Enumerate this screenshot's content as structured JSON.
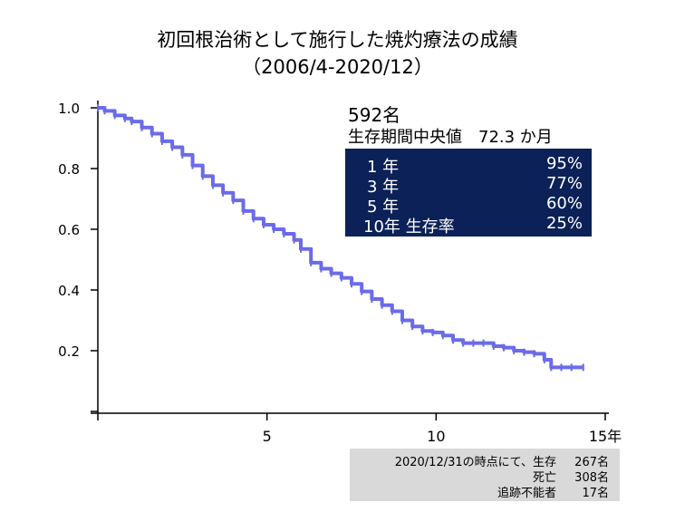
{
  "title_line1": "初回根治術として施行した焼灼療法の成績",
  "title_line2": "（2006/4-2020/12）",
  "patients": "592名",
  "median": {
    "label": "生存期間中央値",
    "value": "72.3 か月"
  },
  "rates": [
    {
      "label": "1 年",
      "value": "95%"
    },
    {
      "label": "3 年",
      "value": "77%"
    },
    {
      "label": "5 年",
      "value": "60%"
    },
    {
      "label": "10年 生存率",
      "value": "25%"
    }
  ],
  "note": {
    "line1_label": "2020/12/31の時点にて、生存",
    "line1_value": "267名",
    "line2_label": "死亡",
    "line2_value": "308名",
    "line3_label": "追跡不能者",
    "line3_value": "17名"
  },
  "colors": {
    "curve": "#6b6bea",
    "box": "#0b2158",
    "note_bg": "#d9d9d9"
  },
  "chart_data": {
    "type": "line",
    "title": "初回根治術として施行した焼灼療法の成績",
    "xlabel": "",
    "ylabel": "",
    "x_unit_label": "年",
    "xlim": [
      0,
      15
    ],
    "ylim": [
      0,
      1.0
    ],
    "xticks": [
      5,
      10,
      15
    ],
    "xtick_labels": [
      "5",
      "10",
      "15年"
    ],
    "yticks": [
      0.2,
      0.4,
      0.6,
      0.8,
      1.0
    ],
    "ytick_labels": [
      "0.2",
      "0.4",
      "0.6",
      "0.8",
      "1.0"
    ],
    "grid": false,
    "series": [
      {
        "x": [
          0,
          0.2,
          0.5,
          0.8,
          1.0,
          1.3,
          1.6,
          1.9,
          2.2,
          2.5,
          2.8,
          3.1,
          3.4,
          3.7,
          4.0,
          4.3,
          4.6,
          4.9,
          5.2,
          5.5,
          5.8,
          6.0,
          6.3,
          6.6,
          6.9,
          7.2,
          7.5,
          7.8,
          8.1,
          8.4,
          8.7,
          9.0,
          9.3,
          9.6,
          9.9,
          10.2,
          10.5,
          10.8,
          11.1,
          11.4,
          11.7,
          12.0,
          12.3,
          12.6,
          12.9,
          13.2,
          13.4,
          13.7,
          14.0,
          14.35
        ],
        "y": [
          1.0,
          0.99,
          0.975,
          0.965,
          0.955,
          0.935,
          0.915,
          0.89,
          0.87,
          0.845,
          0.81,
          0.775,
          0.745,
          0.72,
          0.695,
          0.66,
          0.635,
          0.615,
          0.6,
          0.585,
          0.565,
          0.535,
          0.49,
          0.47,
          0.455,
          0.44,
          0.42,
          0.395,
          0.37,
          0.35,
          0.33,
          0.3,
          0.28,
          0.265,
          0.26,
          0.25,
          0.235,
          0.225,
          0.225,
          0.225,
          0.215,
          0.21,
          0.2,
          0.195,
          0.19,
          0.17,
          0.145,
          0.145,
          0.145,
          0.145
        ]
      }
    ]
  }
}
